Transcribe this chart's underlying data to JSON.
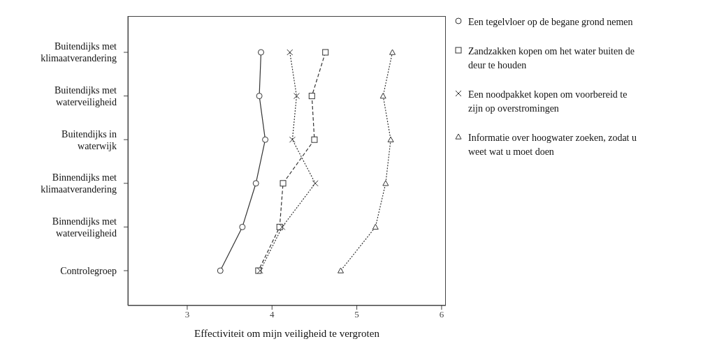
{
  "chart_data": {
    "type": "line",
    "orientation": "horizontal",
    "xlabel": "Effectiviteit om mijn veiligheid te vergroten",
    "categories": [
      "Buitendijks met klimaatverandering",
      "Buitendijks met waterveiligheid",
      "Buitendijks in waterwijk",
      "Binnendijks met klimaatverandering",
      "Binnendijks met waterveiligheid",
      "Controlegroep"
    ],
    "xlim": [
      2.3,
      6.05
    ],
    "xticks": [
      3,
      4,
      5,
      6
    ],
    "legend": "right",
    "series": [
      {
        "name": "Een tegelvloer op de begane grond nemen",
        "color": "#333333",
        "marker": "circle",
        "line_style": "solid",
        "values": [
          3.87,
          3.85,
          3.92,
          3.81,
          3.65,
          3.39
        ]
      },
      {
        "name": "Zandzakken kopen om het water buiten de deur te houden",
        "color": "#333333",
        "marker": "square",
        "line_style": "dashed",
        "values": [
          4.63,
          4.47,
          4.5,
          4.13,
          4.09,
          3.84
        ]
      },
      {
        "name": "Een noodpakket kopen om voorbereid te zijn op overstromingen",
        "color": "#333333",
        "marker": "cross",
        "line_style": "dotted",
        "values": [
          4.21,
          4.29,
          4.24,
          4.51,
          4.12,
          3.86
        ]
      },
      {
        "name": "Informatie over  hoogwater zoeken, zodat u weet wat u moet doen",
        "color": "#333333",
        "marker": "triangle",
        "line_style": "dotted",
        "values": [
          5.42,
          5.31,
          5.4,
          5.34,
          5.22,
          4.81
        ]
      }
    ]
  }
}
